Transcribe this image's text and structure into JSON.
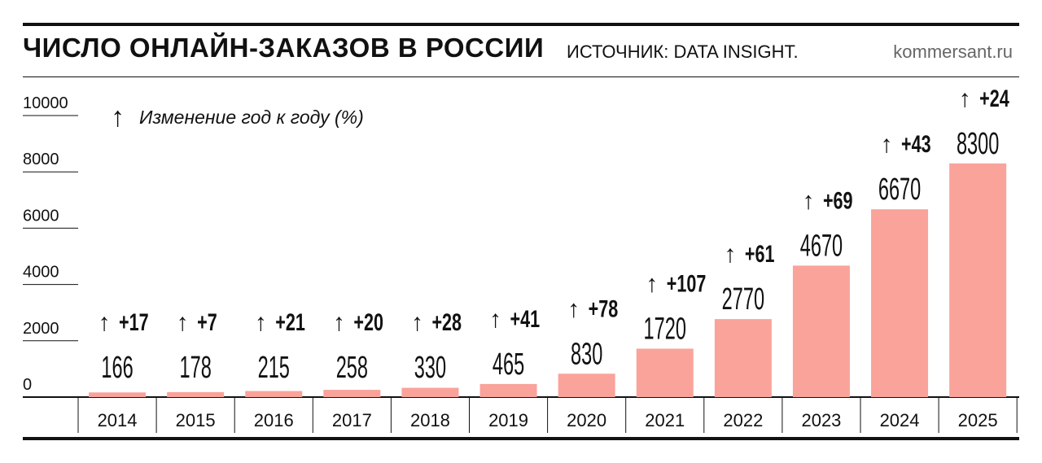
{
  "header": {
    "title": "ЧИСЛО ОНЛАЙН-ЗАКАЗОВ В РОССИИ",
    "source": "ИСТОЧНИК: DATA INSIGHT.",
    "site": "kommersant.ru"
  },
  "legend": {
    "arrow": "↑",
    "text": "Изменение год к году (%)"
  },
  "chart_data": {
    "type": "bar",
    "title": "ЧИСЛО ОНЛАЙН-ЗАКАЗОВ В РОССИИ",
    "categories": [
      "2014",
      "2015",
      "2016",
      "2017",
      "2018",
      "2019",
      "2020",
      "2021",
      "2022",
      "2023",
      "2024",
      "2025"
    ],
    "values": [
      166,
      178,
      215,
      258,
      330,
      465,
      830,
      1720,
      2770,
      4670,
      6670,
      8300
    ],
    "value_labels": [
      "166",
      "178",
      "215",
      "258",
      "330",
      "465",
      "830",
      "1720",
      "2770",
      "4670",
      "6670",
      "8300"
    ],
    "yoy_change_labels": [
      "+17",
      "+7",
      "+21",
      "+20",
      "+28",
      "+41",
      "+78",
      "+107",
      "+61",
      "+69",
      "+43",
      "+24"
    ],
    "yticks": [
      "0",
      "2000",
      "4000",
      "6000",
      "8000",
      "10000"
    ],
    "ylim": [
      0,
      10000
    ],
    "bar_color": "#f9a39b",
    "grid": false,
    "legend_position": "top-left"
  }
}
